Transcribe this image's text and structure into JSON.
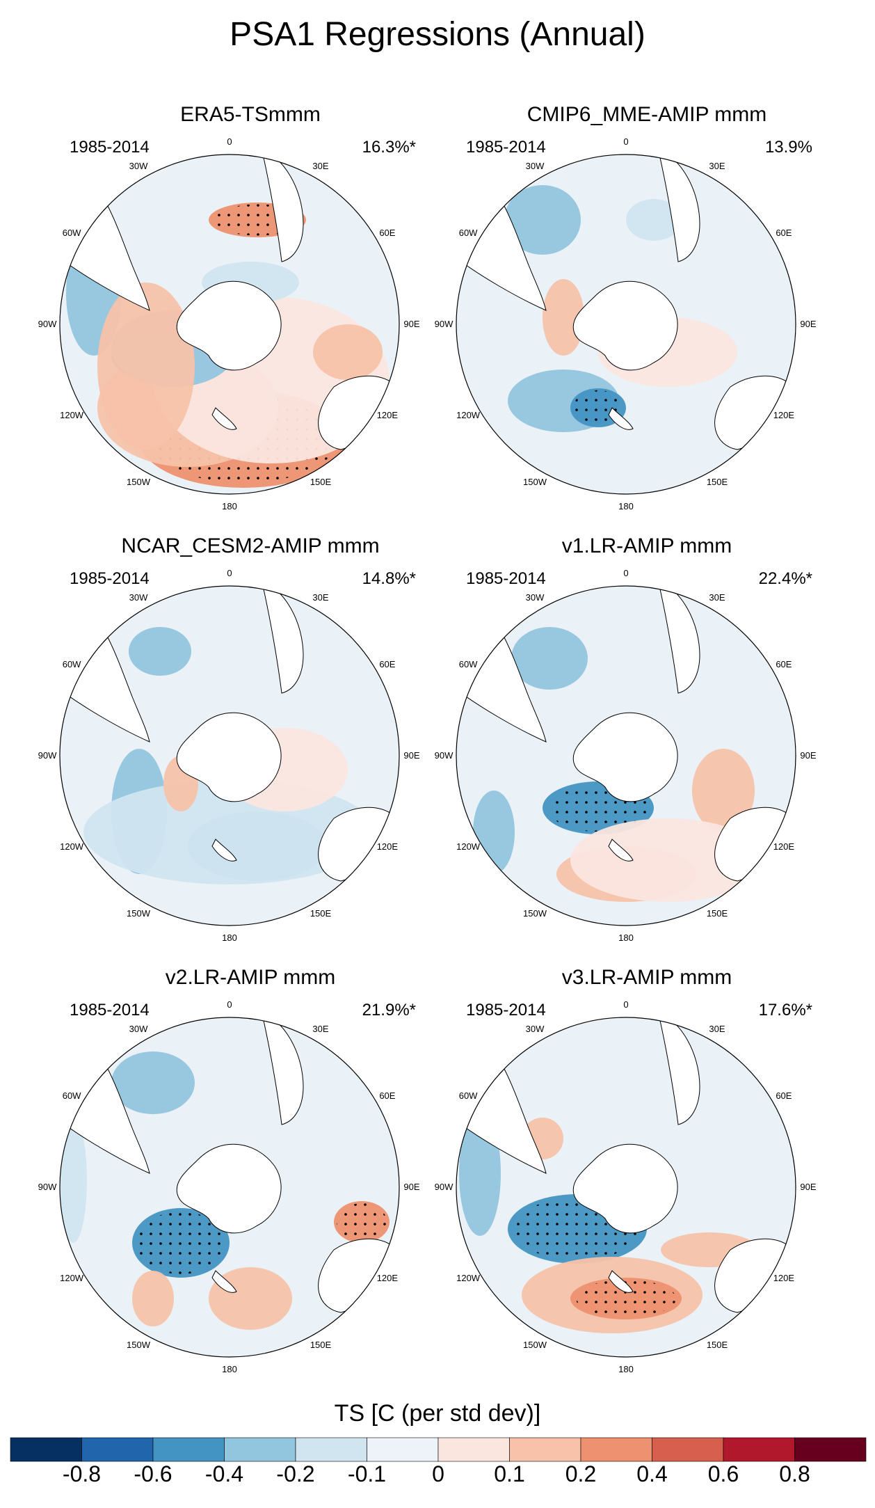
{
  "title": "PSA1 Regressions (Annual)",
  "panels": [
    {
      "title": "ERA5-TSmmm",
      "years": "1985-2014",
      "pct": "16.3%*"
    },
    {
      "title": "CMIP6_MME-AMIP  mmm",
      "years": "1985-2014",
      "pct": "13.9%"
    },
    {
      "title": "NCAR_CESM2-AMIP  mmm",
      "years": "1985-2014",
      "pct": "14.8%*"
    },
    {
      "title": "v1.LR-AMIP  mmm",
      "years": "1985-2014",
      "pct": "22.4%*"
    },
    {
      "title": "v2.LR-AMIP  mmm",
      "years": "1985-2014",
      "pct": "21.9%*"
    },
    {
      "title": "v3.LR-AMIP  mmm",
      "years": "1985-2014",
      "pct": "17.6%*"
    }
  ],
  "lon_labels": [
    "0",
    "30E",
    "60E",
    "90E",
    "120E",
    "150E",
    "180",
    "150W",
    "120W",
    "90W",
    "60W",
    "30W"
  ],
  "colorbar": {
    "title": "TS [C (per std dev)]",
    "labels": [
      "-0.8",
      "-0.6",
      "-0.4",
      "-0.2",
      "-0.1",
      "0",
      "0.1",
      "0.2",
      "0.4",
      "0.6",
      "0.8"
    ],
    "colors": [
      "#053061",
      "#2166ac",
      "#4393c3",
      "#92c5de",
      "#d1e5f0",
      "#edf3f8",
      "#fbe6df",
      "#f7c2a9",
      "#ed9170",
      "#d6604d",
      "#b2182b",
      "#67001f"
    ]
  },
  "map_colors": {
    "ocean_neutral": "#eaf1f7",
    "warm1": "#fbe6df",
    "warm2": "#f7c2a9",
    "warm3": "#ed9170",
    "warm4": "#d6604d",
    "cool1": "#d1e5f0",
    "cool2": "#92c5de",
    "cool3": "#4393c3",
    "land": "#ffffff"
  }
}
